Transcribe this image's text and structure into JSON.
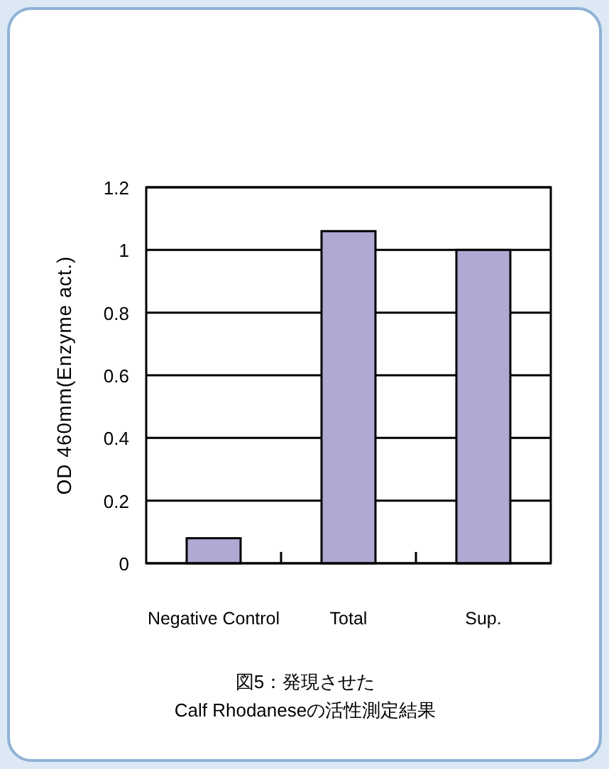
{
  "chart_data": {
    "type": "bar",
    "ylabel": "OD 460mm(Enzyme act.)",
    "categories": [
      "Negative Control",
      "Total",
      "Sup."
    ],
    "values": [
      0.08,
      1.06,
      1.0
    ],
    "color": "#aeaad4",
    "ylim": [
      0,
      1.2
    ],
    "yticks": [
      0,
      0.2,
      0.4,
      0.6,
      0.8,
      1,
      1.2
    ],
    "grid": "y",
    "annotations": [
      "図5：発現させた",
      "Calf Rhodaneseの活性測定結果"
    ]
  }
}
